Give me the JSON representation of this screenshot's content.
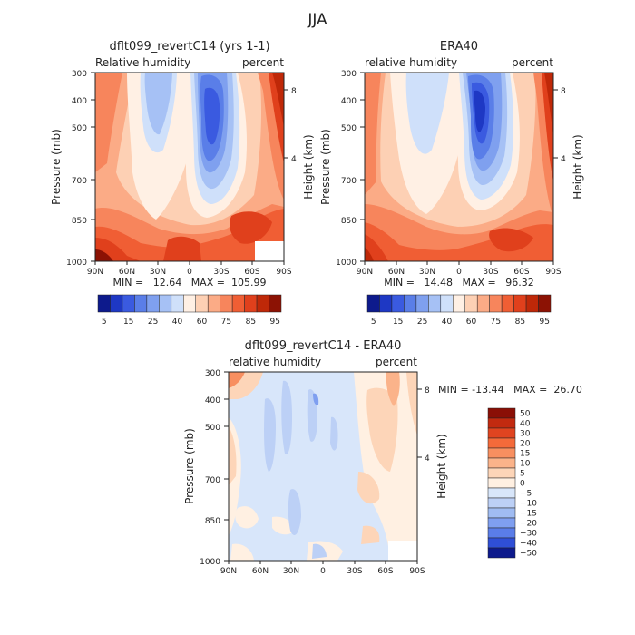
{
  "figure_title": "JJA",
  "chart_data": [
    {
      "type": "contour",
      "title": "dflt099_revertC14 (yrs 1-1)",
      "left_label": "Relative humidity",
      "right_label": "percent",
      "xlabel": "",
      "ylabel": "Pressure (mb)",
      "ylabel_right": "Height (km)",
      "x_ticks": [
        "90N",
        "60N",
        "30N",
        "0",
        "30S",
        "60S",
        "90S"
      ],
      "y_ticks": [
        300,
        400,
        500,
        700,
        850,
        1000
      ],
      "y_ticks_right": [
        8,
        4
      ],
      "ylim": [
        300,
        1000
      ],
      "stats": "MIN =   12.64   MAX =  105.99",
      "min": 12.64,
      "max": 105.99,
      "colorbar_levels": [
        5,
        10,
        15,
        20,
        25,
        30,
        40,
        50,
        60,
        65,
        75,
        80,
        85,
        90,
        95
      ],
      "colorbar_labels": [
        "5",
        "15",
        "25",
        "40",
        "60",
        "75",
        "85",
        "95"
      ]
    },
    {
      "type": "contour",
      "title": "ERA40",
      "left_label": "relative humidity",
      "right_label": "percent",
      "xlabel": "",
      "ylabel": "Pressure (mb)",
      "ylabel_right": "Height (km)",
      "x_ticks": [
        "90N",
        "60N",
        "30N",
        "0",
        "30S",
        "60S",
        "90S"
      ],
      "y_ticks": [
        300,
        400,
        500,
        700,
        850,
        1000
      ],
      "y_ticks_right": [
        8,
        4
      ],
      "ylim": [
        300,
        1000
      ],
      "stats": "MIN =   14.48   MAX =   96.32",
      "min": 14.48,
      "max": 96.32,
      "colorbar_levels": [
        5,
        10,
        15,
        20,
        25,
        30,
        40,
        50,
        60,
        65,
        75,
        80,
        85,
        90,
        95
      ],
      "colorbar_labels": [
        "5",
        "15",
        "25",
        "40",
        "60",
        "75",
        "85",
        "95"
      ]
    },
    {
      "type": "contour",
      "title": "dflt099_revertC14 - ERA40",
      "left_label": "relative humidity",
      "right_label": "percent",
      "xlabel": "",
      "ylabel": "Pressure (mb)",
      "ylabel_right": "Height (km)",
      "x_ticks": [
        "90N",
        "60N",
        "30N",
        "0",
        "30S",
        "60S",
        "90S"
      ],
      "y_ticks": [
        300,
        400,
        500,
        700,
        850,
        1000
      ],
      "y_ticks_right": [
        8,
        4
      ],
      "ylim": [
        300,
        1000
      ],
      "stats": "MIN = -13.44   MAX =  26.70",
      "min": -13.44,
      "max": 26.7,
      "colorbar_labels": [
        "50",
        "40",
        "30",
        "20",
        "15",
        "10",
        "5",
        "0",
        "−5",
        "−10",
        "−15",
        "−20",
        "−30",
        "−40",
        "−50"
      ]
    }
  ],
  "colors": {
    "abs_scale": [
      "#0d1a8c",
      "#1e38c4",
      "#3a5ae0",
      "#5a7ee8",
      "#7fa0ef",
      "#a6c1f5",
      "#cfe0fa",
      "#fff0e4",
      "#fdd0b4",
      "#fbab86",
      "#f7855c",
      "#f05e34",
      "#e0401c",
      "#bf2808",
      "#8c1204"
    ],
    "diff_scale": [
      "#8a0f06",
      "#c22a10",
      "#e04420",
      "#f46a3a",
      "#f88f60",
      "#fbb38a",
      "#fdd5b8",
      "#fff0e2",
      "#d8e6fa",
      "#bcd0f6",
      "#a0bcf2",
      "#7f9ff0",
      "#5a7de8",
      "#2f4fd6",
      "#0d1a8c"
    ]
  }
}
